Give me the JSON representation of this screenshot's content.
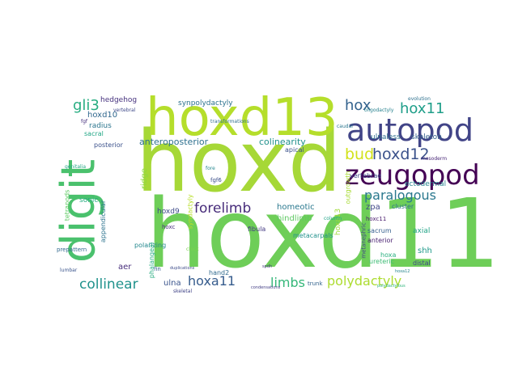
{
  "cloud": {
    "words": [
      {
        "text": "hoxd",
        "color": "#a6d837",
        "rotated": false
      },
      {
        "text": "hoxd11",
        "color": "#6ece58",
        "rotated": false
      },
      {
        "text": "hoxd13",
        "color": "#b5de2b",
        "rotated": false
      },
      {
        "text": "digit",
        "color": "#4ac16d",
        "rotated": true
      },
      {
        "text": "autopod",
        "color": "#414487",
        "rotated": false
      },
      {
        "text": "zeugopod",
        "color": "#440154",
        "rotated": false
      },
      {
        "text": "hox",
        "color": "#33628d",
        "rotated": false
      },
      {
        "text": "hox11",
        "color": "#1f9e89",
        "rotated": false
      },
      {
        "text": "bud",
        "color": "#d2e21b",
        "rotated": false
      },
      {
        "text": "hoxd12",
        "color": "#3b528b",
        "rotated": false
      },
      {
        "text": "paralogous",
        "color": "#2a788e",
        "rotated": false
      },
      {
        "text": "forelimb",
        "color": "#472c7a",
        "rotated": false
      },
      {
        "text": "gli3",
        "color": "#27ad81",
        "rotated": false
      },
      {
        "text": "limbs",
        "color": "#35b779",
        "rotated": false
      },
      {
        "text": "polydactyly",
        "color": "#addc30",
        "rotated": false
      },
      {
        "text": "collinear",
        "color": "#20928c",
        "rotated": false
      },
      {
        "text": "hoxa11",
        "color": "#365c8d",
        "rotated": false
      },
      {
        "text": "anteroposterior",
        "color": "#2d708e",
        "rotated": false
      },
      {
        "text": "colinearity",
        "color": "#21918c",
        "rotated": false
      },
      {
        "text": "hoxd10",
        "color": "#31688e",
        "rotated": false
      },
      {
        "text": "hedgehog",
        "color": "#46327e",
        "rotated": false
      },
      {
        "text": "synpolydactyly",
        "color": "#2c728e",
        "rotated": false
      },
      {
        "text": "ulnaless",
        "color": "#2e6e8e",
        "rotated": false
      },
      {
        "text": "skeleton",
        "color": "#34608d",
        "rotated": false
      },
      {
        "text": "ectodermal",
        "color": "#26828e",
        "rotated": false
      },
      {
        "text": "homeotic",
        "color": "#2a788e",
        "rotated": false
      },
      {
        "text": "hindlimb",
        "color": "#5ec962",
        "rotated": false
      },
      {
        "text": "hoxd9",
        "color": "#3e4a89",
        "rotated": false
      },
      {
        "text": "hoxa13",
        "color": "#a0da39",
        "rotated": true
      },
      {
        "text": "zpa",
        "color": "#3f4788",
        "rotated": false
      },
      {
        "text": "hoxc11",
        "color": "#481a6c",
        "rotated": false
      },
      {
        "text": "cluster",
        "color": "#2c728e",
        "rotated": false
      },
      {
        "text": "axial",
        "color": "#20a386",
        "rotated": false
      },
      {
        "text": "sacrum",
        "color": "#355f8d",
        "rotated": false
      },
      {
        "text": "shh",
        "color": "#1f9a8a",
        "rotated": false
      },
      {
        "text": "hoxa",
        "color": "#29af7f",
        "rotated": false
      },
      {
        "text": "anterior",
        "color": "#481f70",
        "rotated": false
      },
      {
        "text": "ureteric",
        "color": "#3dbc74",
        "rotated": false
      },
      {
        "text": "distal",
        "color": "#404588",
        "rotated": false
      },
      {
        "text": "aer",
        "color": "#472d7b",
        "rotated": false
      },
      {
        "text": "ulna",
        "color": "#3a548c",
        "rotated": false
      },
      {
        "text": "sonic",
        "color": "#27ad81",
        "rotated": false
      },
      {
        "text": "hand2",
        "color": "#306a8e",
        "rotated": false
      },
      {
        "text": "radius",
        "color": "#2b758e",
        "rotated": false
      },
      {
        "text": "sacral",
        "color": "#21a685",
        "rotated": false
      },
      {
        "text": "posterior",
        "color": "#3b518b",
        "rotated": false
      },
      {
        "text": "ridge",
        "color": "#90d743",
        "rotated": true
      },
      {
        "text": "fgf6",
        "color": "#3c4f8a",
        "rotated": false
      },
      {
        "text": "hoxc",
        "color": "#472f7d",
        "rotated": false
      },
      {
        "text": "metacarpals",
        "color": "#21918c",
        "rotated": false
      },
      {
        "text": "vertebrae",
        "color": "#3f4788",
        "rotated": false
      },
      {
        "text": "outgrowth",
        "color": "#a8db34",
        "rotated": true
      },
      {
        "text": "apical",
        "color": "#3b528b",
        "rotated": false
      },
      {
        "text": "fibula",
        "color": "#443983",
        "rotated": false
      },
      {
        "text": "appendicular",
        "color": "#2c738e",
        "rotated": true
      },
      {
        "text": "tetrapods",
        "color": "#5ec962",
        "rotated": true
      },
      {
        "text": "polarizing",
        "color": "#23888e",
        "rotated": false
      },
      {
        "text": "phalangeal",
        "color": "#27ad81",
        "rotated": true
      },
      {
        "text": "trunk",
        "color": "#33638d",
        "rotated": false
      },
      {
        "text": "metanephric",
        "color": "#414487",
        "rotated": true
      },
      {
        "text": "evolution",
        "color": "#2d708e",
        "rotated": false
      },
      {
        "text": "transformations",
        "color": "#2e6f8e",
        "rotated": false
      },
      {
        "text": "duplications",
        "color": "#3e4c8a",
        "rotated": false
      },
      {
        "text": "condensations",
        "color": "#433e85",
        "rotated": false
      },
      {
        "text": "oligodactyly",
        "color": "#26818e",
        "rotated": false
      },
      {
        "text": "polydactylous",
        "color": "#2fb47c",
        "rotated": false
      },
      {
        "text": "syndactyly",
        "color": "#b8de29",
        "rotated": true
      },
      {
        "text": "prepattern",
        "color": "#31688e",
        "rotated": false
      },
      {
        "text": "lumbar",
        "color": "#3a548c",
        "rotated": false
      },
      {
        "text": "chick",
        "color": "#7ad151",
        "rotated": false
      },
      {
        "text": "column",
        "color": "#20a486",
        "rotated": false
      },
      {
        "text": "fin",
        "color": "#365d8d",
        "rotated": false
      },
      {
        "text": "genitalia",
        "color": "#22a785",
        "rotated": false
      },
      {
        "text": "skeletal",
        "color": "#414487",
        "rotated": false
      },
      {
        "text": "vertebral",
        "color": "#3e4989",
        "rotated": false
      },
      {
        "text": "fgf",
        "color": "#46307e",
        "rotated": false
      },
      {
        "text": "fore",
        "color": "#24878e",
        "rotated": false
      },
      {
        "text": "spdh",
        "color": "#453781",
        "rotated": false
      },
      {
        "text": "mesoderm",
        "color": "#482677",
        "rotated": false
      },
      {
        "text": "hoxa12",
        "color": "#25848e",
        "rotated": false
      },
      {
        "text": "caudal",
        "color": "#2a768e",
        "rotated": false
      }
    ]
  }
}
